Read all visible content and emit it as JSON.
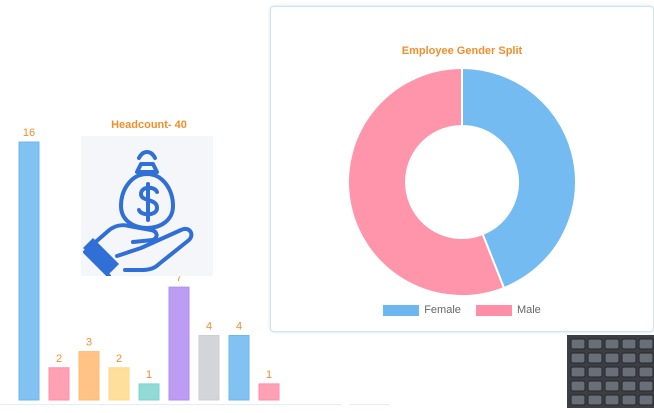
{
  "headcount": {
    "title": "Headcount- 40",
    "image_icon": "money-bag-hand-icon"
  },
  "chart_data": [
    {
      "type": "bar",
      "values": [
        16,
        2,
        3,
        2,
        1,
        7,
        4,
        4,
        1
      ],
      "data_labels": [
        "16",
        "2",
        "3",
        "2",
        "1",
        "7",
        "4",
        "4",
        "1"
      ],
      "colors": [
        "#6cb7f0",
        "#ff8fa7",
        "#ffb870",
        "#ffd98a",
        "#7fd3cf",
        "#b28cf2",
        "#cdced2",
        "#6cb7f0",
        "#ff8fa7"
      ],
      "ylim": [
        0,
        16
      ],
      "title": "",
      "xlabel": "",
      "ylabel": ""
    },
    {
      "type": "pie",
      "variant": "doughnut",
      "title": "Employee Gender Split",
      "categories": [
        "Female",
        "Male"
      ],
      "values": [
        44,
        56
      ],
      "colors": [
        "#6cb7f0",
        "#ff8fa7"
      ],
      "legend_position": "bottom"
    }
  ],
  "gender_card": {
    "title": "Employee Gender Split",
    "legend": [
      {
        "label": "Female",
        "color": "#6cb7f0"
      },
      {
        "label": "Male",
        "color": "#ff8fa7"
      }
    ]
  },
  "calculator": {
    "image_icon": "calculator-icon"
  }
}
